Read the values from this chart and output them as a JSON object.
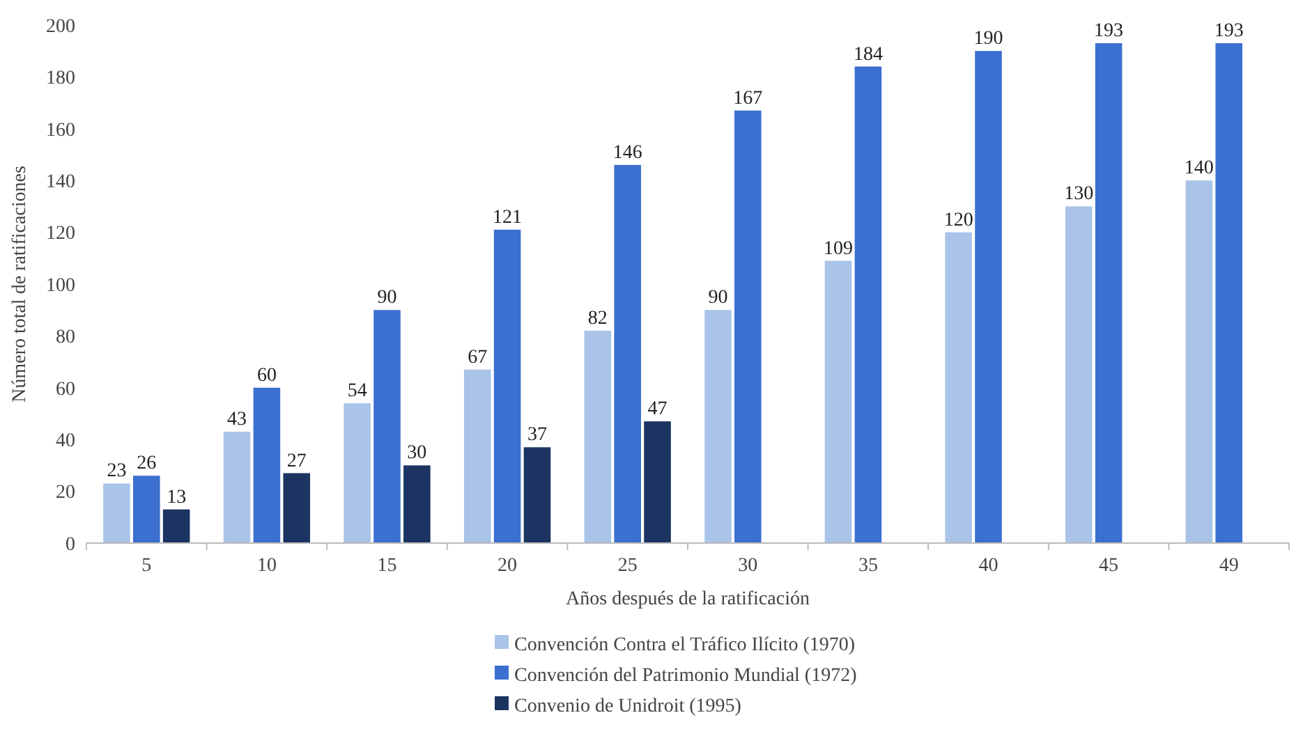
{
  "chart_data": {
    "type": "bar",
    "xlabel": "Años después de la ratificación",
    "ylabel": "Número total de ratificaciones",
    "categories": [
      "5",
      "10",
      "15",
      "20",
      "25",
      "30",
      "35",
      "40",
      "45",
      "49"
    ],
    "series": [
      {
        "name": "Convención Contra el Tráfico Ilícito (1970)",
        "color": "#a9c4e8",
        "values": [
          23,
          43,
          54,
          67,
          82,
          90,
          109,
          120,
          130,
          140
        ]
      },
      {
        "name": "Convención del Patrimonio Mundial (1972)",
        "color": "#3b6fd0",
        "values": [
          26,
          60,
          90,
          121,
          146,
          167,
          184,
          190,
          193,
          193
        ]
      },
      {
        "name": "Convenio de Unidroit (1995)",
        "color": "#1c3461",
        "values": [
          13,
          27,
          30,
          37,
          47,
          null,
          null,
          null,
          null,
          null
        ]
      }
    ],
    "ylim": [
      0,
      200
    ],
    "yticks": [
      0,
      20,
      40,
      60,
      80,
      100,
      120,
      140,
      160,
      180,
      200
    ],
    "grid": false,
    "legend": "bottom",
    "data_labels": true
  }
}
